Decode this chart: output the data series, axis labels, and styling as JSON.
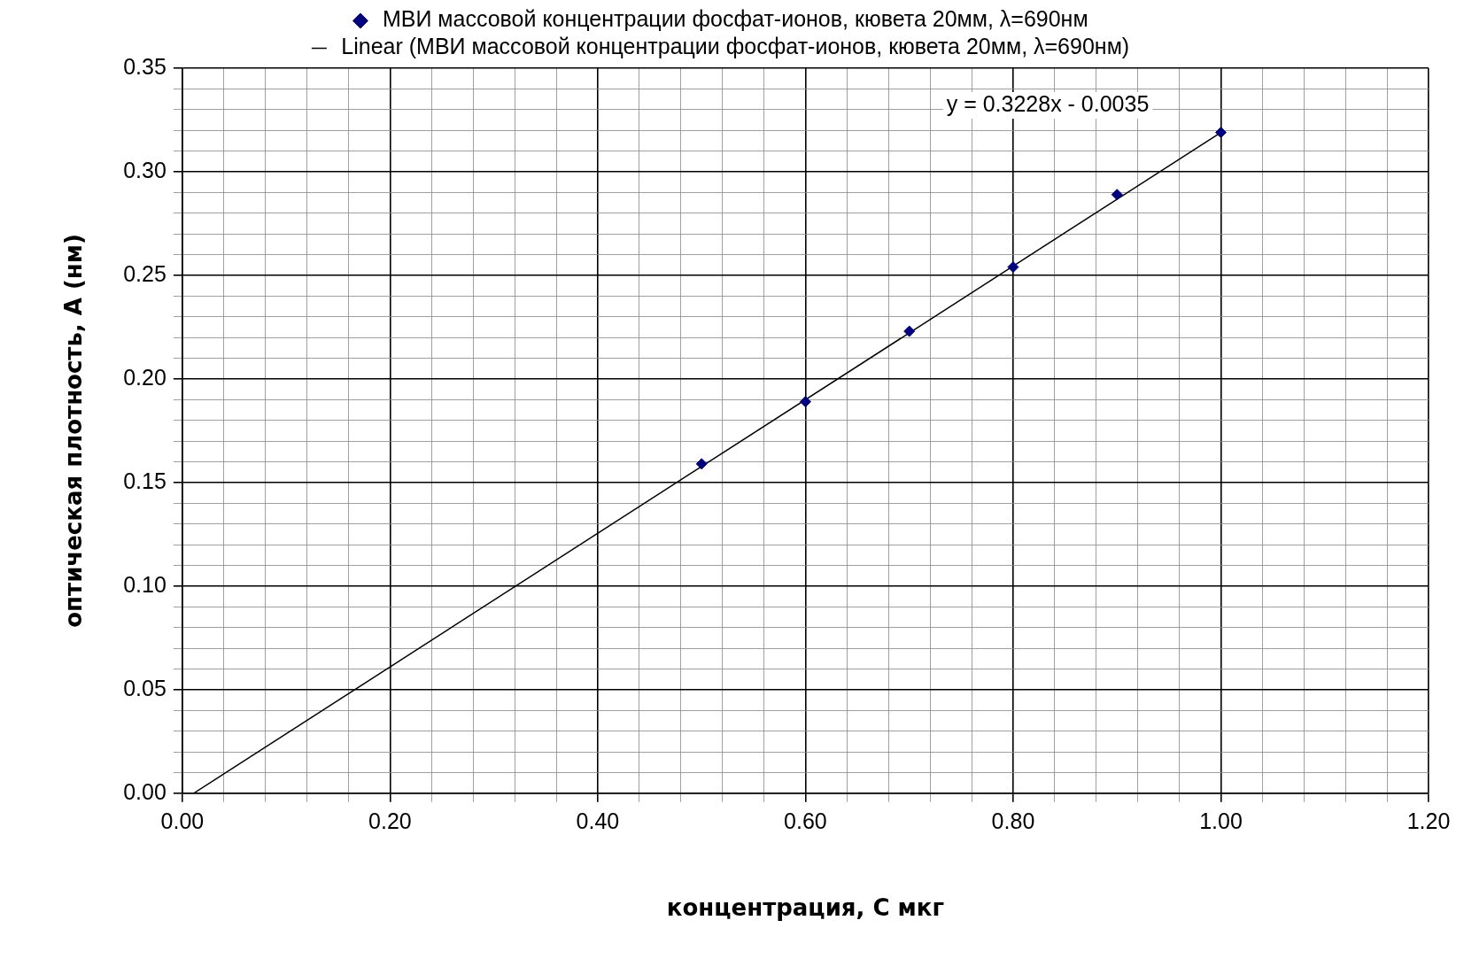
{
  "chart_data": {
    "type": "scatter",
    "xlabel": "концентрация, С мкг",
    "ylabel": "оптическая плотность, А (нм)",
    "legend": "top",
    "grid": true,
    "marker": "diamond",
    "xlim": [
      0,
      1.2
    ],
    "ylim": [
      0,
      0.35
    ],
    "xticks": [
      {
        "value": 0,
        "label": "0.00"
      },
      {
        "value": 0.04,
        "label": null
      },
      {
        "value": 0.08,
        "label": null
      },
      {
        "value": 0.12,
        "label": null
      },
      {
        "value": 0.16,
        "label": null
      },
      {
        "value": 0.2,
        "label": "0.20"
      },
      {
        "value": 0.24,
        "label": null
      },
      {
        "value": 0.28,
        "label": null
      },
      {
        "value": 0.32,
        "label": null
      },
      {
        "value": 0.36,
        "label": null
      },
      {
        "value": 0.4,
        "label": "0.40"
      },
      {
        "value": 0.44,
        "label": null
      },
      {
        "value": 0.48,
        "label": null
      },
      {
        "value": 0.52,
        "label": null
      },
      {
        "value": 0.56,
        "label": null
      },
      {
        "value": 0.6,
        "label": "0.60"
      },
      {
        "value": 0.64,
        "label": null
      },
      {
        "value": 0.68,
        "label": null
      },
      {
        "value": 0.72,
        "label": null
      },
      {
        "value": 0.76,
        "label": null
      },
      {
        "value": 0.8,
        "label": "0.80"
      },
      {
        "value": 0.84,
        "label": null
      },
      {
        "value": 0.88,
        "label": null
      },
      {
        "value": 0.92,
        "label": null
      },
      {
        "value": 0.96,
        "label": null
      },
      {
        "value": 1,
        "label": "1.00"
      },
      {
        "value": 1.04,
        "label": null
      },
      {
        "value": 1.08,
        "label": null
      },
      {
        "value": 1.12,
        "label": null
      },
      {
        "value": 1.16,
        "label": null
      },
      {
        "value": 1.2,
        "label": "1.20"
      }
    ],
    "yticks": [
      {
        "value": 0,
        "label": "0.00"
      },
      {
        "value": 0.01,
        "label": null
      },
      {
        "value": 0.02,
        "label": null
      },
      {
        "value": 0.03,
        "label": null
      },
      {
        "value": 0.04,
        "label": null
      },
      {
        "value": 0.05,
        "label": "0.05"
      },
      {
        "value": 0.06,
        "label": null
      },
      {
        "value": 0.07,
        "label": null
      },
      {
        "value": 0.08,
        "label": null
      },
      {
        "value": 0.09,
        "label": null
      },
      {
        "value": 0.1,
        "label": "0.10"
      },
      {
        "value": 0.11,
        "label": null
      },
      {
        "value": 0.12,
        "label": null
      },
      {
        "value": 0.13,
        "label": null
      },
      {
        "value": 0.14,
        "label": null
      },
      {
        "value": 0.15,
        "label": "0.15"
      },
      {
        "value": 0.16,
        "label": null
      },
      {
        "value": 0.17,
        "label": null
      },
      {
        "value": 0.18,
        "label": null
      },
      {
        "value": 0.19,
        "label": null
      },
      {
        "value": 0.2,
        "label": "0.20"
      },
      {
        "value": 0.21,
        "label": null
      },
      {
        "value": 0.22,
        "label": null
      },
      {
        "value": 0.23,
        "label": null
      },
      {
        "value": 0.24,
        "label": null
      },
      {
        "value": 0.25,
        "label": "0.25"
      },
      {
        "value": 0.26,
        "label": null
      },
      {
        "value": 0.27,
        "label": null
      },
      {
        "value": 0.28,
        "label": null
      },
      {
        "value": 0.29,
        "label": null
      },
      {
        "value": 0.3,
        "label": "0.30"
      },
      {
        "value": 0.31,
        "label": null
      },
      {
        "value": 0.32,
        "label": null
      },
      {
        "value": 0.33,
        "label": null
      },
      {
        "value": 0.34,
        "label": null
      },
      {
        "value": 0.35,
        "label": "0.35"
      }
    ],
    "series": [
      {
        "name": "МВИ массовой концентрации фосфат-ионов, кювета 20мм, λ=690нм",
        "color": "#000080",
        "x": [
          0.5,
          0.6,
          0.7,
          0.8,
          0.9,
          1.0
        ],
        "values": [
          0.159,
          0.189,
          0.223,
          0.254,
          0.289,
          0.319
        ]
      },
      {
        "name": "Linear (МВИ массовой концентрации фосфат-ионов, кювета 20мм, λ=690нм)",
        "type": "line",
        "color": "#000000",
        "marker": "none",
        "x": [
          0.011,
          1.0
        ],
        "values": [
          0,
          0.319
        ]
      }
    ],
    "annotations": [
      "y = 0.3228x - 0.0035"
    ]
  }
}
